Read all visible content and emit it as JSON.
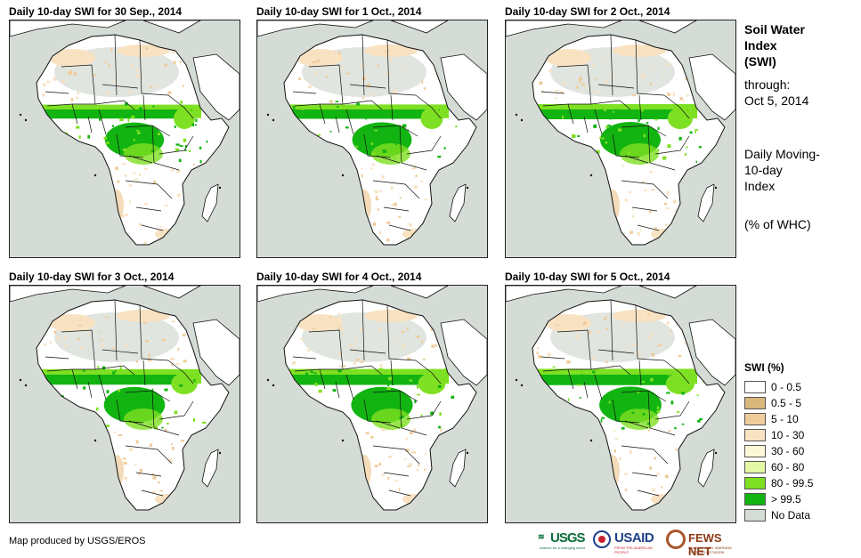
{
  "panels": [
    {
      "title": "Daily 10-day SWI for 30 Sep., 2014",
      "wetness": 0.85
    },
    {
      "title": "Daily 10-day SWI for 1 Oct., 2014",
      "wetness": 0.9
    },
    {
      "title": "Daily 10-day SWI for 2 Oct., 2014",
      "wetness": 1.0
    },
    {
      "title": "Daily 10-day SWI for 3 Oct., 2014",
      "wetness": 1.05
    },
    {
      "title": "Daily 10-day SWI for 4 Oct., 2014",
      "wetness": 1.1
    },
    {
      "title": "Daily 10-day SWI for 5 Oct., 2014",
      "wetness": 1.15
    }
  ],
  "side": {
    "title_line1": "Soil Water",
    "title_line2": "Index",
    "title_line3": "(SWI)",
    "through_label": "through:",
    "through_date": "Oct 5, 2014",
    "desc_line1": "Daily Moving-",
    "desc_line2": "10-day",
    "desc_line3": "Index",
    "unit": "(% of WHC)"
  },
  "legend": {
    "title": "SWI (%)",
    "items": [
      {
        "label": "0 - 0.5",
        "color": "#ffffff"
      },
      {
        "label": "0.5 - 5",
        "color": "#d9b67c"
      },
      {
        "label": "5 - 10",
        "color": "#f0cc9b"
      },
      {
        "label": "10 - 30",
        "color": "#f8e2c2"
      },
      {
        "label": "30 - 60",
        "color": "#fcf7d6"
      },
      {
        "label": "60 - 80",
        "color": "#e3f7a4"
      },
      {
        "label": "80 - 99.5",
        "color": "#7ee022"
      },
      {
        "label": "> 99.5",
        "color": "#12b412"
      },
      {
        "label": "No Data",
        "color": "#d5dcd6"
      }
    ]
  },
  "colors": {
    "land": "#ffffff",
    "wet": "#12b412",
    "moist": "#7ee022",
    "dry_tan": "#f0cc9b",
    "light_tan": "#f8e2c2",
    "nodata": "#d5dcd6",
    "border": "#111111"
  },
  "credit": "Map produced by USGS/EROS",
  "logos": {
    "usgs": "USGS",
    "usgs_tag": "science for a changing world",
    "usaid": "USAID",
    "usaid_tag": "FROM THE AMERICAN PEOPLE",
    "fews": "FEWS NET",
    "fews_tag": "FAMINE EARLY WARNING SYSTEMS NETWORK"
  }
}
